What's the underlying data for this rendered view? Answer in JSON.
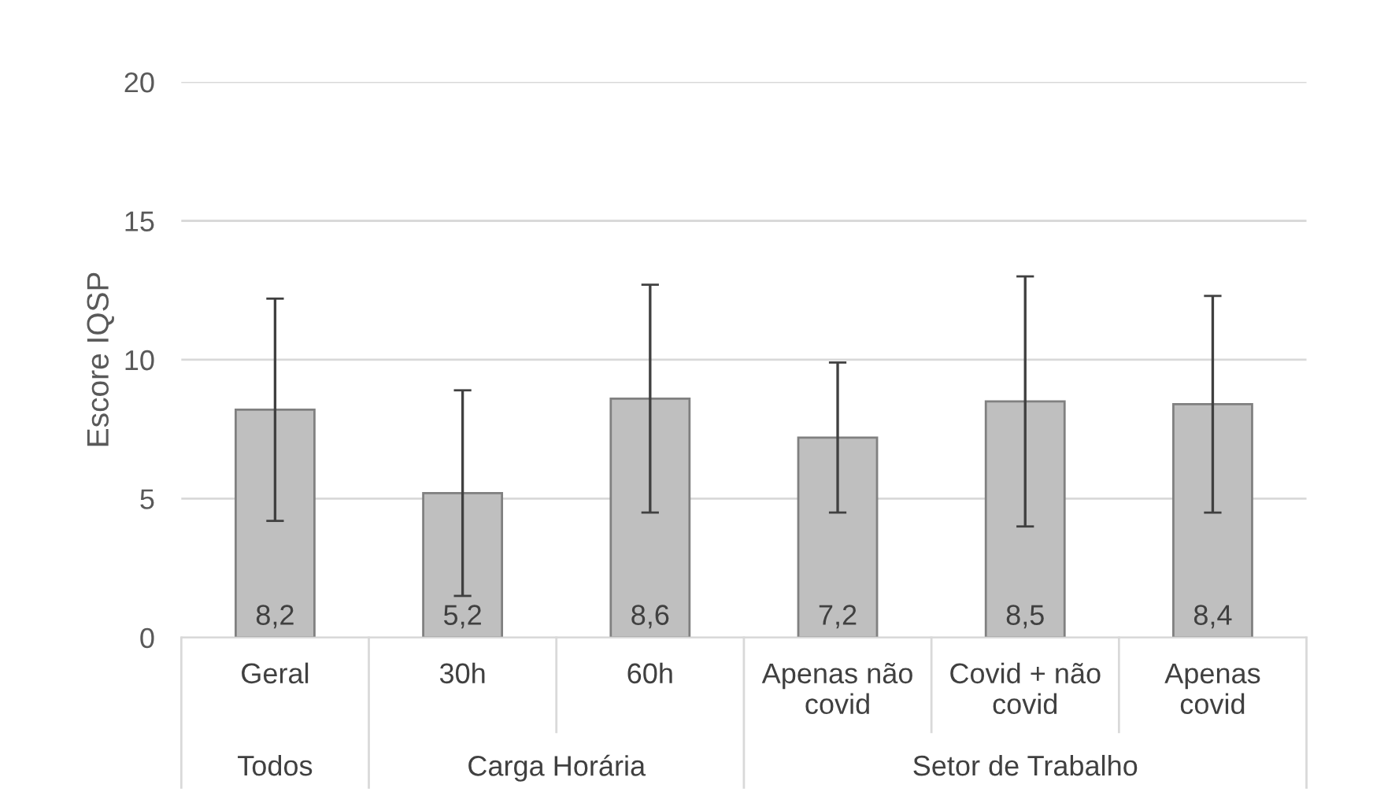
{
  "chart_data": {
    "type": "bar",
    "ylabel": "Escore IQSP",
    "categories": [
      "Geral",
      "30h",
      "60h",
      "Apenas não covid",
      "Covid + não covid",
      "Apenas covid"
    ],
    "values": [
      8.2,
      5.2,
      8.6,
      7.2,
      8.5,
      8.4
    ],
    "errors": [
      4.0,
      3.7,
      4.1,
      2.7,
      4.5,
      3.9
    ],
    "value_labels": [
      "8,2",
      "5,2",
      "8,6",
      "7,2",
      "8,5",
      "8,4"
    ],
    "color": "#bfbfbf",
    "annotations": [
      "Todos",
      "Carga Horária",
      "Setor de Trabalho"
    ],
    "ylim": [
      0,
      20
    ],
    "yticks": [
      0,
      5,
      10,
      15,
      20
    ],
    "grid": "y"
  }
}
